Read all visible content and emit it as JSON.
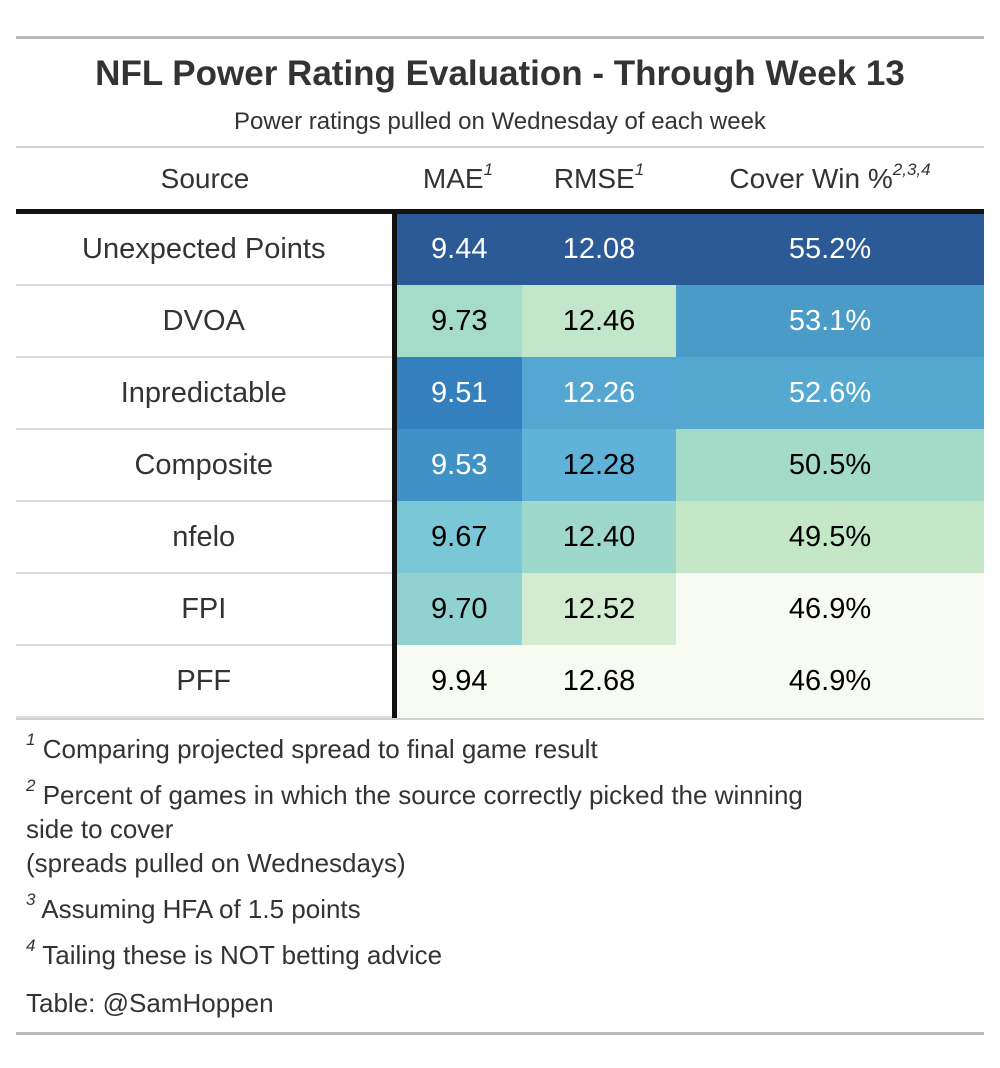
{
  "title": "NFL Power Rating Evaluation - Through Week 13",
  "subtitle": "Power ratings pulled on Wednesday of each week",
  "chart_data": {
    "type": "table",
    "columns": [
      {
        "label": "Source",
        "sup": ""
      },
      {
        "label": "MAE",
        "sup": "1"
      },
      {
        "label": "RMSE",
        "sup": "1"
      },
      {
        "label": "Cover Win %",
        "sup": "2,3,4"
      }
    ],
    "rows": [
      {
        "source": "Unexpected Points",
        "mae": "9.44",
        "rmse": "12.08",
        "cover": "55.2%",
        "colors": {
          "mae": "#2b5a97",
          "rmse": "#2b5a97",
          "cover": "#2b5a97"
        },
        "text": {
          "mae": "#ffffff",
          "rmse": "#ffffff",
          "cover": "#ffffff"
        }
      },
      {
        "source": "DVOA",
        "mae": "9.73",
        "rmse": "12.46",
        "cover": "53.1%",
        "colors": {
          "mae": "#a5dcc9",
          "rmse": "#c2e6c9",
          "cover": "#4b9bc8"
        },
        "text": {
          "mae": "#000000",
          "rmse": "#000000",
          "cover": "#ffffff"
        }
      },
      {
        "source": "Inpredictable",
        "mae": "9.51",
        "rmse": "12.26",
        "cover": "52.6%",
        "colors": {
          "mae": "#347fbd",
          "rmse": "#55a6d0",
          "cover": "#55a8d0"
        },
        "text": {
          "mae": "#ffffff",
          "rmse": "#ffffff",
          "cover": "#ffffff"
        }
      },
      {
        "source": "Composite",
        "mae": "9.53",
        "rmse": "12.28",
        "cover": "50.5%",
        "colors": {
          "mae": "#4092c6",
          "rmse": "#5fb3d8",
          "cover": "#a3dbc8"
        },
        "text": {
          "mae": "#ffffff",
          "rmse": "#000000",
          "cover": "#000000"
        }
      },
      {
        "source": "nfelo",
        "mae": "9.67",
        "rmse": "12.40",
        "cover": "49.5%",
        "colors": {
          "mae": "#7ac7d7",
          "rmse": "#9ed8cb",
          "cover": "#c4e7c5"
        },
        "text": {
          "mae": "#000000",
          "rmse": "#000000",
          "cover": "#000000"
        }
      },
      {
        "source": "FPI",
        "mae": "9.70",
        "rmse": "12.52",
        "cover": "46.9%",
        "colors": {
          "mae": "#90d2d0",
          "rmse": "#d3ecd1",
          "cover": "#f7fbf1"
        },
        "text": {
          "mae": "#000000",
          "rmse": "#000000",
          "cover": "#000000"
        }
      },
      {
        "source": "PFF",
        "mae": "9.94",
        "rmse": "12.68",
        "cover": "46.9%",
        "colors": {
          "mae": "#f7fbf1",
          "rmse": "#f7fbf1",
          "cover": "#f7fbf1"
        },
        "text": {
          "mae": "#000000",
          "rmse": "#000000",
          "cover": "#000000"
        }
      }
    ]
  },
  "footnotes": [
    {
      "mark": "1",
      "text": "Comparing projected spread to final game result",
      "line2": "",
      "line3": ""
    },
    {
      "mark": "2",
      "text": "Percent of games in which the source correctly picked the winning",
      "line2": "side to cover",
      "line3": "(spreads pulled on Wednesdays)"
    },
    {
      "mark": "3",
      "text": "Assuming HFA of 1.5 points",
      "line2": "",
      "line3": ""
    },
    {
      "mark": "4",
      "text": "Tailing these is NOT betting advice",
      "line2": "",
      "line3": ""
    }
  ],
  "credit": "Table: @SamHoppen"
}
